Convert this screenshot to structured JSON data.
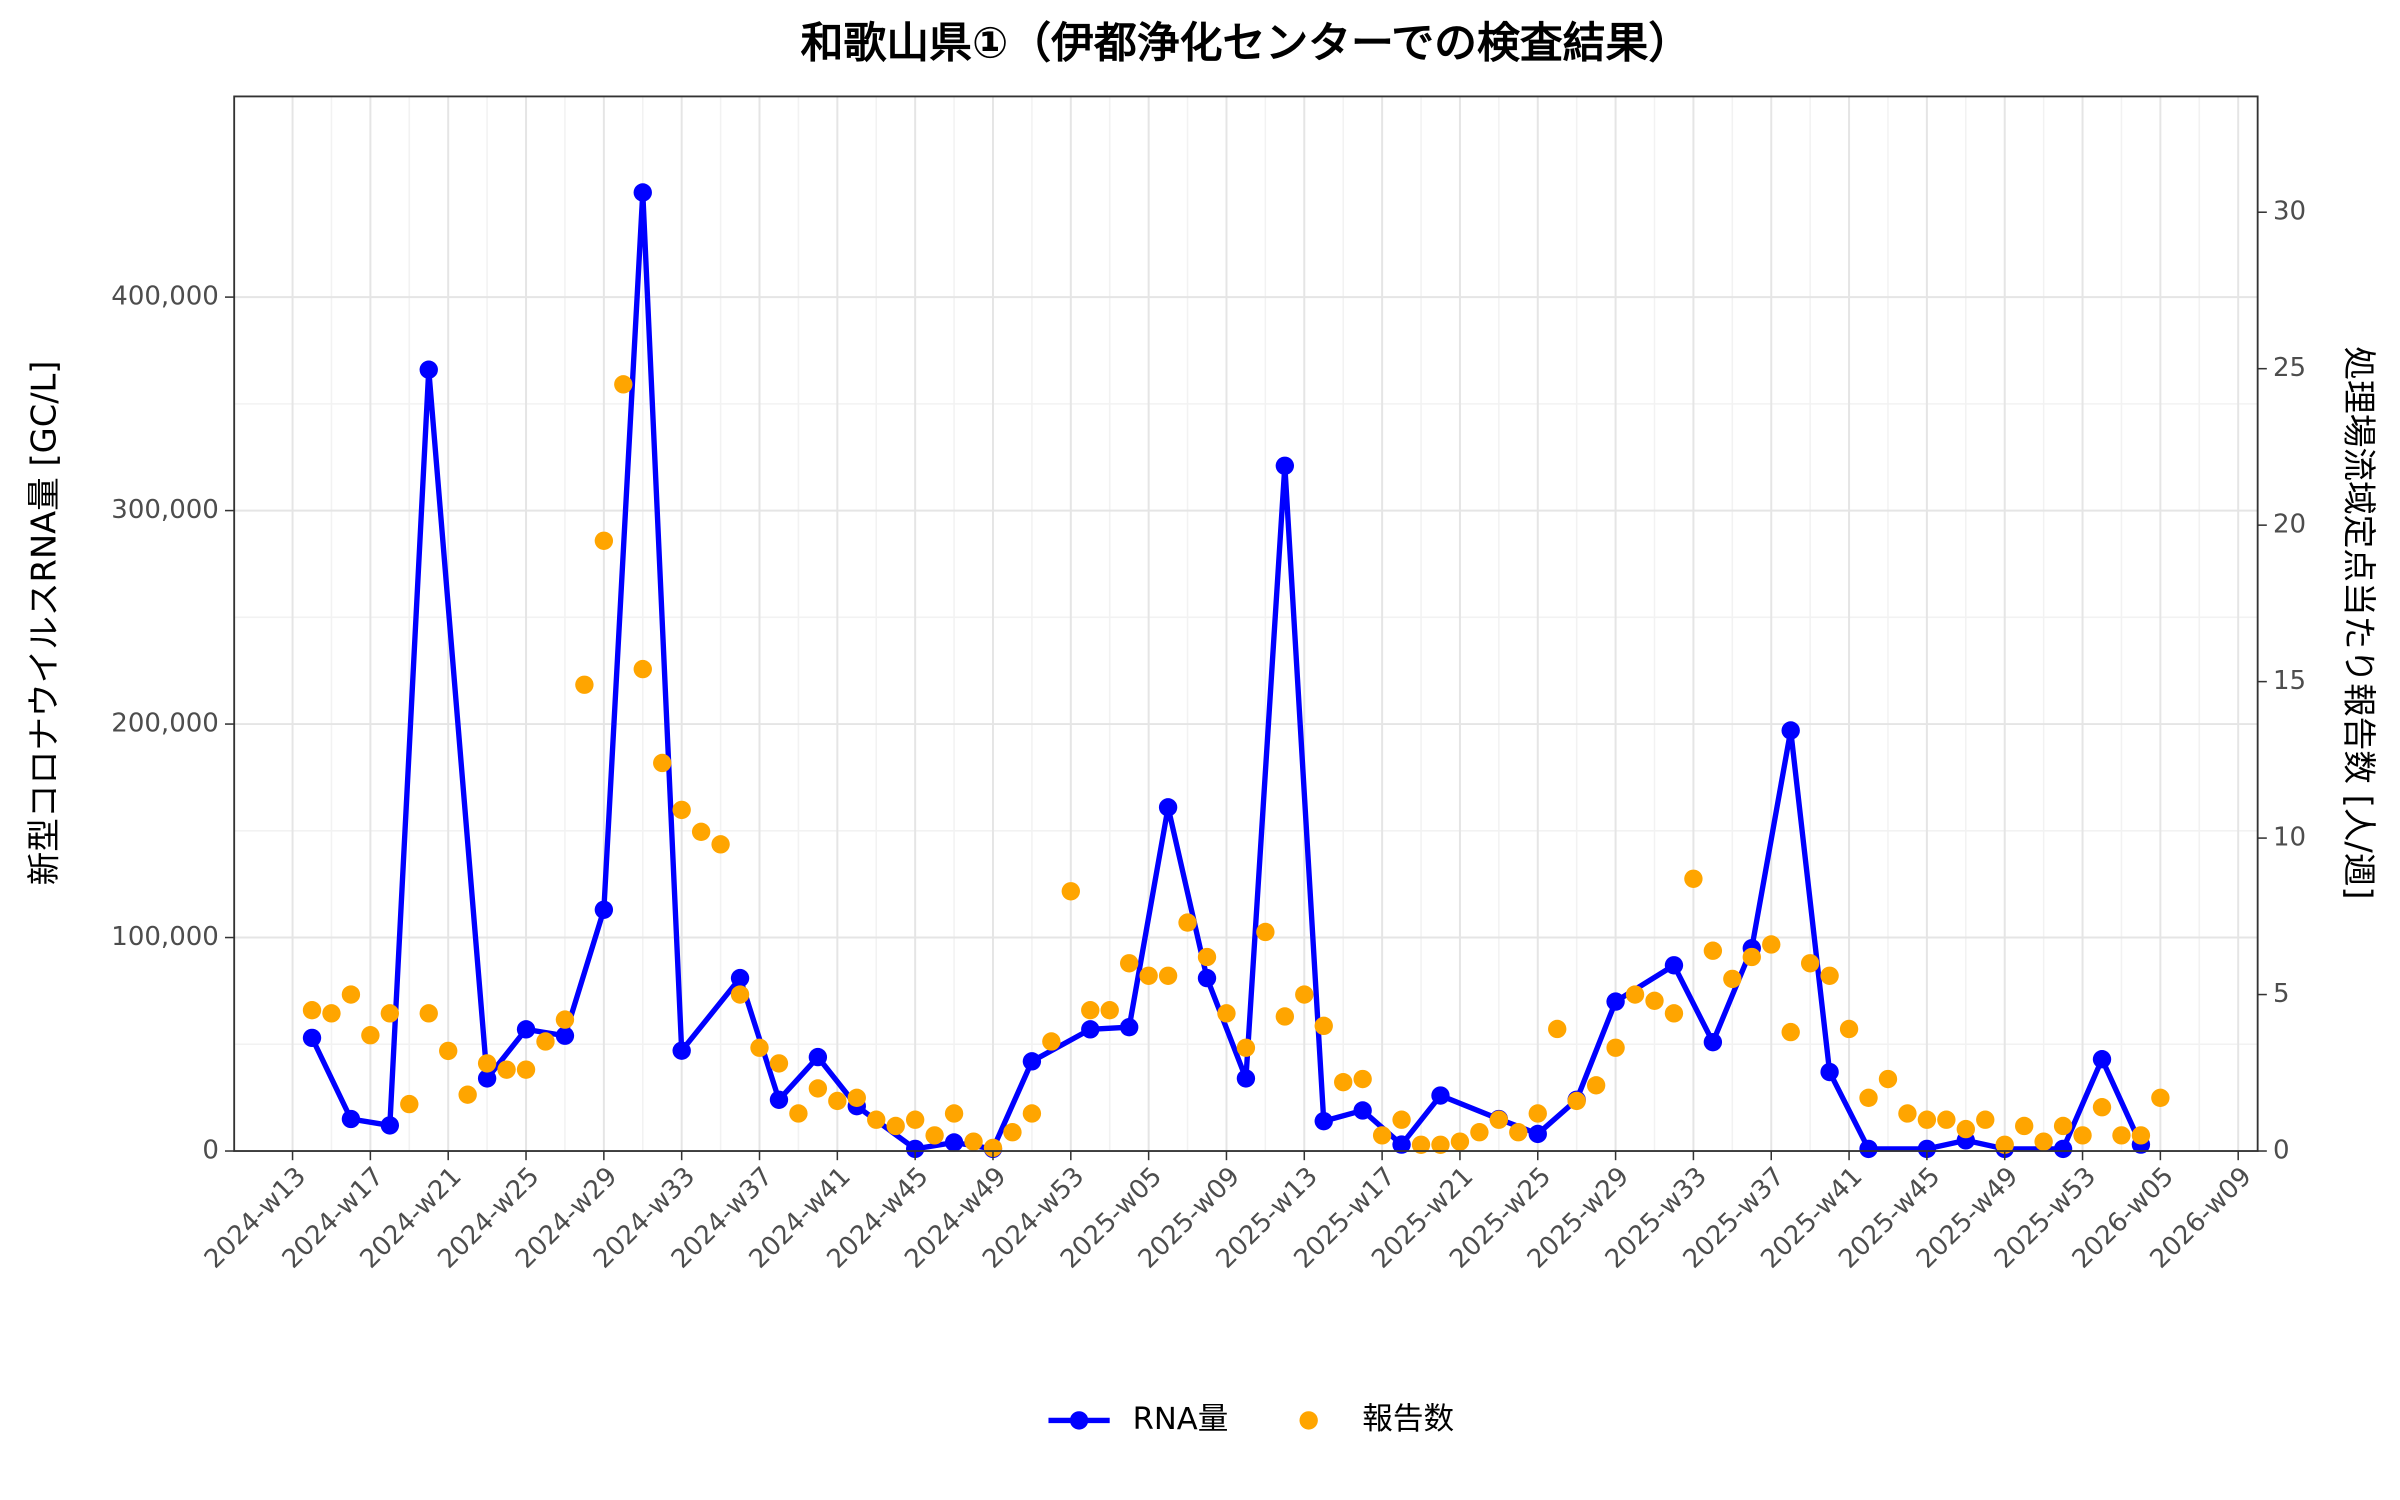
{
  "chart_data": {
    "type": "line",
    "title": "和歌山県①（伊都浄化センターでの検査結果）",
    "y_label": "新型コロナウイルスRNA量 [GC/L]",
    "y2_label": "処理場流域定点当たり報告数 [人/週]",
    "xlim": [
      "2024-w10",
      "2026-w10"
    ],
    "xticks": [
      "2024-w13",
      "2024-w17",
      "2024-w21",
      "2024-w25",
      "2024-w29",
      "2024-w33",
      "2024-w37",
      "2024-w41",
      "2024-w45",
      "2024-w49",
      "2024-w53",
      "2025-w05",
      "2025-w09",
      "2025-w13",
      "2025-w17",
      "2025-w21",
      "2025-w25",
      "2025-w29",
      "2025-w33",
      "2025-w37",
      "2025-w41",
      "2025-w45",
      "2025-w49",
      "2025-w53",
      "2026-w05",
      "2026-w09"
    ],
    "ylim": [
      0,
      494000
    ],
    "yticks": [
      0,
      {
        "value": 100000,
        "label": "100,000"
      },
      {
        "value": 200000,
        "label": "200,000"
      },
      {
        "value": 300000,
        "label": "300,000"
      },
      {
        "value": 400000,
        "label": "400,000"
      }
    ],
    "y2lim": [
      0,
      33.7
    ],
    "y2ticks": [
      0,
      5,
      10,
      15,
      20,
      25,
      30
    ],
    "grid": true,
    "legend": "bottom",
    "series": [
      {
        "name": "RNA量",
        "color": "#0000ff",
        "style": "line-points",
        "x": [
          "2024-w14",
          "2024-w16",
          "2024-w18",
          "2024-w20",
          "2024-w23",
          "2024-w25",
          "2024-w27",
          "2024-w29",
          "2024-w31",
          "2024-w33",
          "2024-w36",
          "2024-w38",
          "2024-w40",
          "2024-w42",
          "2024-w45",
          "2024-w47",
          "2024-w49",
          "2024-w51",
          "2025-w02",
          "2025-w04",
          "2025-w06",
          "2025-w08",
          "2025-w10",
          "2025-w12",
          "2025-w14",
          "2025-w16",
          "2025-w18",
          "2025-w20",
          "2025-w23",
          "2025-w25",
          "2025-w27",
          "2025-w29",
          "2025-w32",
          "2025-w34",
          "2025-w36",
          "2025-w38",
          "2025-w40",
          "2025-w42",
          "2025-w45",
          "2025-w47",
          "2025-w49",
          "2025-w52",
          "2026-w02",
          "2026-w04"
        ],
        "values": [
          53000,
          15000,
          12000,
          366000,
          34000,
          57000,
          54000,
          113000,
          449000,
          47000,
          81000,
          24000,
          44000,
          21000,
          1000,
          4000,
          1000,
          42000,
          57000,
          58000,
          161000,
          81000,
          34000,
          321000,
          14000,
          19000,
          3000,
          26000,
          15000,
          8000,
          24000,
          70000,
          87000,
          51000,
          95000,
          197000,
          37000,
          1000,
          1000,
          5000,
          1000,
          1000,
          43000,
          3000
        ]
      },
      {
        "name": "報告数",
        "color": "#ffa500",
        "style": "points",
        "axis": "y2",
        "x": [
          "2024-w14",
          "2024-w15",
          "2024-w16",
          "2024-w17",
          "2024-w18",
          "2024-w19",
          "2024-w20",
          "2024-w21",
          "2024-w22",
          "2024-w23",
          "2024-w24",
          "2024-w25",
          "2024-w26",
          "2024-w27",
          "2024-w28",
          "2024-w29",
          "2024-w30",
          "2024-w31",
          "2024-w32",
          "2024-w33",
          "2024-w34",
          "2024-w35",
          "2024-w36",
          "2024-w37",
          "2024-w38",
          "2024-w39",
          "2024-w40",
          "2024-w41",
          "2024-w42",
          "2024-w43",
          "2024-w44",
          "2024-w45",
          "2024-w46",
          "2024-w47",
          "2024-w48",
          "2024-w49",
          "2024-w50",
          "2024-w51",
          "2024-w52",
          "2025-w01",
          "2025-w02",
          "2025-w03",
          "2025-w04",
          "2025-w05",
          "2025-w06",
          "2025-w07",
          "2025-w08",
          "2025-w09",
          "2025-w10",
          "2025-w11",
          "2025-w12",
          "2025-w13",
          "2025-w14",
          "2025-w15",
          "2025-w16",
          "2025-w17",
          "2025-w18",
          "2025-w19",
          "2025-w20",
          "2025-w21",
          "2025-w22",
          "2025-w23",
          "2025-w24",
          "2025-w25",
          "2025-w26",
          "2025-w27",
          "2025-w28",
          "2025-w29",
          "2025-w30",
          "2025-w31",
          "2025-w32",
          "2025-w33",
          "2025-w34",
          "2025-w35",
          "2025-w36",
          "2025-w37",
          "2025-w38",
          "2025-w39",
          "2025-w40",
          "2025-w41",
          "2025-w42",
          "2025-w43",
          "2025-w44",
          "2025-w45",
          "2025-w46",
          "2025-w47",
          "2025-w48",
          "2025-w49",
          "2025-w50",
          "2025-w51",
          "2025-w52",
          "2026-w01",
          "2026-w02",
          "2026-w03",
          "2026-w04",
          "2026-w05"
        ],
        "values": [
          4.5,
          4.4,
          5.0,
          3.7,
          4.4,
          1.5,
          4.4,
          3.2,
          1.8,
          2.8,
          2.6,
          2.6,
          3.5,
          4.2,
          14.9,
          19.5,
          24.5,
          15.4,
          12.4,
          10.9,
          10.2,
          9.8,
          5.0,
          3.3,
          2.8,
          1.2,
          2.0,
          1.6,
          1.7,
          1.0,
          0.8,
          1.0,
          0.5,
          1.2,
          0.3,
          0.1,
          0.6,
          1.2,
          3.5,
          8.3,
          4.5,
          4.5,
          6.0,
          5.6,
          5.6,
          7.3,
          6.2,
          4.4,
          3.3,
          7.0,
          4.3,
          5.0,
          4.0,
          2.2,
          2.3,
          0.5,
          1.0,
          0.2,
          0.2,
          0.3,
          0.6,
          1.0,
          0.6,
          1.2,
          3.9,
          1.6,
          2.1,
          3.3,
          5.0,
          4.8,
          4.4,
          8.7,
          6.4,
          5.5,
          6.2,
          6.6,
          3.8,
          6.0,
          5.6,
          3.9,
          1.7,
          2.3,
          1.2,
          1.0,
          1.0,
          0.7,
          1.0,
          0.2,
          0.8,
          0.3,
          0.8,
          0.5,
          1.4,
          0.5,
          0.5,
          1.7
        ]
      }
    ]
  }
}
